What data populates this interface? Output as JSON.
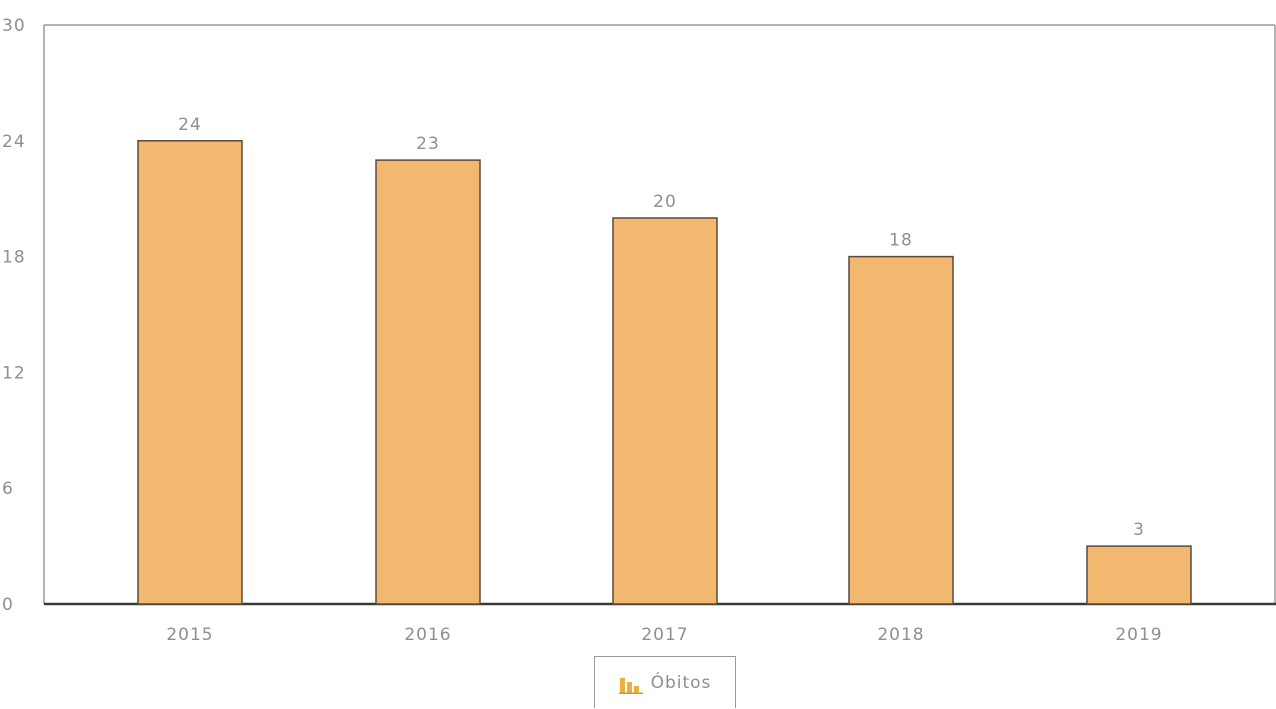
{
  "chart_data": {
    "type": "bar",
    "categories": [
      "2015",
      "2016",
      "2017",
      "2018",
      "2019"
    ],
    "series": [
      {
        "name": "Óbitos",
        "values": [
          24,
          23,
          20,
          18,
          3
        ]
      }
    ],
    "ylim": [
      0,
      30
    ],
    "yticks": [
      0,
      6,
      12,
      18,
      24,
      30
    ],
    "grid": false,
    "legend_position": "bottom-center",
    "bar_color": "#f3b870",
    "bar_border_color": "#5a4a3a",
    "axis_color": "#3a3a3a"
  },
  "legend": {
    "label": "Óbitos",
    "icon": "bar-chart-icon"
  }
}
